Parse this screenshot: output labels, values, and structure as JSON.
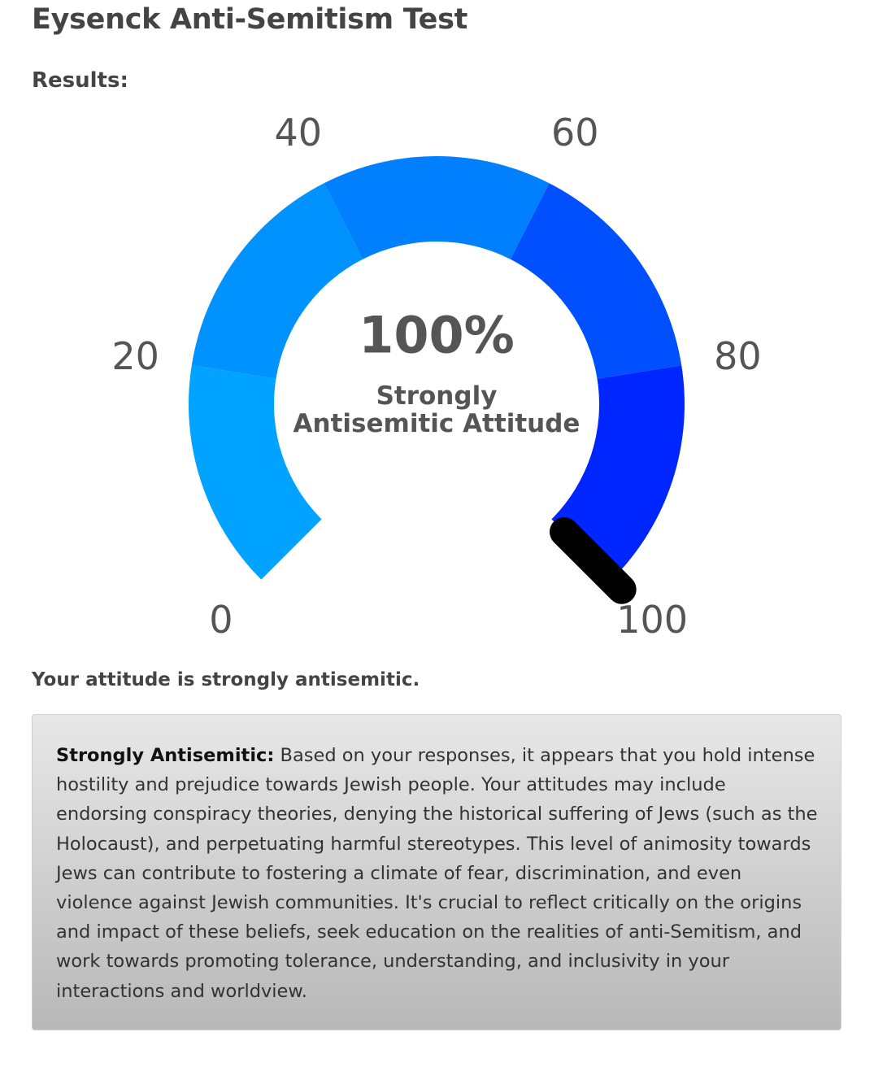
{
  "page": {
    "title": "Eysenck Anti-Semitism Test",
    "results_heading": "Results:"
  },
  "gauge": {
    "value_text": "100%",
    "value": 100,
    "min": 0,
    "max": 100,
    "caption_line1": "Strongly",
    "caption_line2": "Antisemitic Attitude",
    "tick_labels": [
      "0",
      "20",
      "40",
      "60",
      "80",
      "100"
    ],
    "segments": [
      {
        "from": 0,
        "to": 20,
        "color": "#00a3ff"
      },
      {
        "from": 20,
        "to": 40,
        "color": "#0092ff"
      },
      {
        "from": 40,
        "to": 60,
        "color": "#0080ff"
      },
      {
        "from": 60,
        "to": 80,
        "color": "#0050ff"
      },
      {
        "from": 80,
        "to": 100,
        "color": "#0026ff"
      }
    ],
    "needle_color": "#000000"
  },
  "result": {
    "summary": "Your attitude is strongly antisemitic.",
    "category_label": "Strongly Antisemitic:",
    "description": "Based on your responses, it appears that you hold intense hostility and prejudice towards Jewish people. Your attitudes may include endorsing conspiracy theories, denying the historical suffering of Jews (such as the Holocaust), and perpetuating harmful stereotypes. This level of animosity towards Jews can contribute to fostering a climate of fear, discrimination, and even violence against Jewish communities. It's crucial to reflect critically on the origins and impact of these beliefs, seek education on the realities of anti-Semitism, and work towards promoting tolerance, understanding, and inclusivity in your interactions and worldview."
  }
}
